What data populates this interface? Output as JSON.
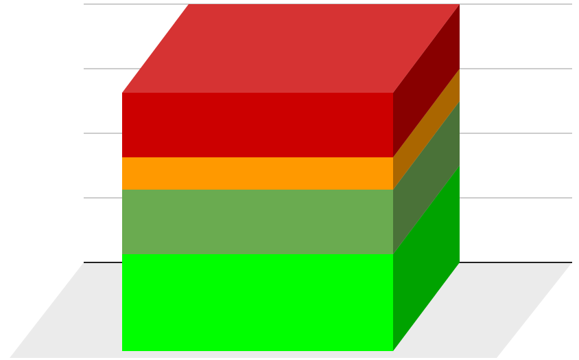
{
  "chart_data": {
    "type": "bar",
    "stacked": true,
    "three_d": true,
    "categories": [
      ""
    ],
    "series": [
      {
        "values": [
          1.5
        ],
        "color": "#00FF00",
        "side_color": "#00A300",
        "top_color": "#33FF33"
      },
      {
        "values": [
          1.0
        ],
        "color": "#6AAB50",
        "side_color": "#4A7238",
        "top_color": "#8BC170"
      },
      {
        "values": [
          0.5
        ],
        "color": "#FF9900",
        "side_color": "#AA6600",
        "top_color": "#FFB033"
      },
      {
        "values": [
          1.0
        ],
        "color": "#CC0000",
        "side_color": "#880000",
        "top_color": "#D63333"
      }
    ],
    "ylim": [
      0,
      4
    ],
    "y_gridlines": [
      1,
      2,
      3,
      4
    ],
    "grid": true,
    "legend": "none",
    "floor_color": "#EBEBEB",
    "gridline_color": "#CCCCCC",
    "axis_color": "#222222"
  }
}
